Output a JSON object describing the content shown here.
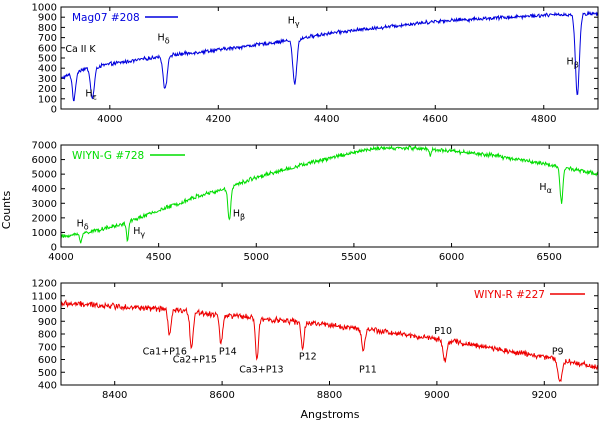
{
  "figure": {
    "ylabel": "Counts",
    "xlabel": "Angstroms"
  },
  "chart_data": [
    {
      "type": "line",
      "title": "",
      "legend": "Mag07 #208",
      "legend_position": "top-left",
      "color": "#0000dd",
      "xlim": [
        3910,
        4900
      ],
      "ylim": [
        0,
        1000
      ],
      "xticks": [
        4000,
        4200,
        4400,
        4600,
        4800
      ],
      "yticks": [
        0,
        100,
        200,
        300,
        400,
        500,
        600,
        700,
        800,
        900,
        1000
      ],
      "continuum": [
        [
          3910,
          300
        ],
        [
          3950,
          390
        ],
        [
          4000,
          440
        ],
        [
          4100,
          520
        ],
        [
          4200,
          580
        ],
        [
          4300,
          650
        ],
        [
          4340,
          680
        ],
        [
          4400,
          740
        ],
        [
          4500,
          800
        ],
        [
          4600,
          860
        ],
        [
          4700,
          890
        ],
        [
          4800,
          920
        ],
        [
          4900,
          935
        ]
      ],
      "lines": [
        {
          "name": "CaK",
          "center": 3934,
          "depth": 270,
          "width": 4
        },
        {
          "name": "CaH_He",
          "center": 3968,
          "depth": 300,
          "width": 5
        },
        {
          "name": "Hd",
          "center": 4102,
          "depth": 330,
          "width": 5
        },
        {
          "name": "Hg",
          "center": 4341,
          "depth": 440,
          "width": 5
        },
        {
          "name": "Hb",
          "center": 4862,
          "depth": 800,
          "width": 5
        }
      ],
      "noise": 22,
      "annotations": [
        {
          "text": "Ca II K",
          "x": 3918,
          "y": 560
        },
        {
          "text": "Hε",
          "x": 3955,
          "y": 125
        },
        {
          "text": "Hδ",
          "x": 4088,
          "y": 670
        },
        {
          "text": "Hγ",
          "x": 4328,
          "y": 840
        },
        {
          "text": "Hβ",
          "x": 4842,
          "y": 435
        }
      ]
    },
    {
      "type": "line",
      "title": "",
      "legend": "WIYN-G #728",
      "legend_position": "top-left",
      "color": "#00dd00",
      "xlim": [
        4000,
        6750
      ],
      "ylim": [
        0,
        7000
      ],
      "xticks": [
        4000,
        4500,
        5000,
        5500,
        6000,
        6500
      ],
      "yticks": [
        0,
        1000,
        2000,
        3000,
        4000,
        5000,
        6000,
        7000
      ],
      "continuum": [
        [
          4000,
          700
        ],
        [
          4100,
          900
        ],
        [
          4300,
          1500
        ],
        [
          4500,
          2500
        ],
        [
          4700,
          3500
        ],
        [
          4850,
          4000
        ],
        [
          5000,
          4800
        ],
        [
          5200,
          5500
        ],
        [
          5400,
          6200
        ],
        [
          5600,
          6750
        ],
        [
          5800,
          6800
        ],
        [
          6000,
          6600
        ],
        [
          6200,
          6300
        ],
        [
          6400,
          5900
        ],
        [
          6550,
          5500
        ],
        [
          6750,
          5000
        ]
      ],
      "lines": [
        {
          "name": "Hd",
          "center": 4102,
          "depth": 500,
          "width": 8
        },
        {
          "name": "Hg",
          "center": 4341,
          "depth": 1200,
          "width": 8
        },
        {
          "name": "Hb",
          "center": 4862,
          "depth": 2200,
          "width": 10
        },
        {
          "name": "Ha",
          "center": 6563,
          "depth": 2400,
          "width": 10
        },
        {
          "name": "NaD",
          "center": 5892,
          "depth": 500,
          "width": 6
        }
      ],
      "noise": 170,
      "annotations": [
        {
          "text": "Hδ",
          "x": 4080,
          "y": 1400
        },
        {
          "text": "Hγ",
          "x": 4370,
          "y": 900
        },
        {
          "text": "Hβ",
          "x": 4880,
          "y": 2100
        },
        {
          "text": "Hα",
          "x": 6450,
          "y": 3900
        }
      ]
    },
    {
      "type": "line",
      "title": "",
      "legend": "WIYN-R #227",
      "legend_position": "top-right",
      "color": "#ee0000",
      "xlim": [
        8300,
        9300
      ],
      "ylim": [
        400,
        1200
      ],
      "xticks": [
        8400,
        8600,
        8800,
        9000,
        9200
      ],
      "yticks": [
        400,
        500,
        600,
        700,
        800,
        900,
        1000,
        1100,
        1200
      ],
      "continuum": [
        [
          8300,
          1040
        ],
        [
          8400,
          1020
        ],
        [
          8500,
          990
        ],
        [
          8600,
          950
        ],
        [
          8700,
          910
        ],
        [
          8800,
          870
        ],
        [
          8900,
          820
        ],
        [
          9000,
          760
        ],
        [
          9100,
          690
        ],
        [
          9200,
          620
        ],
        [
          9300,
          540
        ]
      ],
      "lines": [
        {
          "name": "P16",
          "center": 8502,
          "depth": 200,
          "width": 4
        },
        {
          "name": "Ca2+P15",
          "center": 8543,
          "depth": 280,
          "width": 4
        },
        {
          "name": "P14",
          "center": 8598,
          "depth": 230,
          "width": 4
        },
        {
          "name": "Ca3+P13",
          "center": 8665,
          "depth": 320,
          "width": 4
        },
        {
          "name": "P12",
          "center": 8750,
          "depth": 200,
          "width": 4
        },
        {
          "name": "P11",
          "center": 8863,
          "depth": 180,
          "width": 4
        },
        {
          "name": "P10",
          "center": 9015,
          "depth": 150,
          "width": 5
        },
        {
          "name": "P9",
          "center": 9229,
          "depth": 180,
          "width": 5
        }
      ],
      "noise": 28,
      "annotations": [
        {
          "text": "Ca1+P16",
          "x": 8452,
          "y": 640
        },
        {
          "text": "Ca2+P15",
          "x": 8508,
          "y": 575
        },
        {
          "text": "P14",
          "x": 8594,
          "y": 640
        },
        {
          "text": "Ca3+P13",
          "x": 8632,
          "y": 500
        },
        {
          "text": "P12",
          "x": 8743,
          "y": 600
        },
        {
          "text": "P11",
          "x": 8855,
          "y": 500
        },
        {
          "text": "P10",
          "x": 8995,
          "y": 800
        },
        {
          "text": "P9",
          "x": 9214,
          "y": 640
        }
      ]
    }
  ]
}
